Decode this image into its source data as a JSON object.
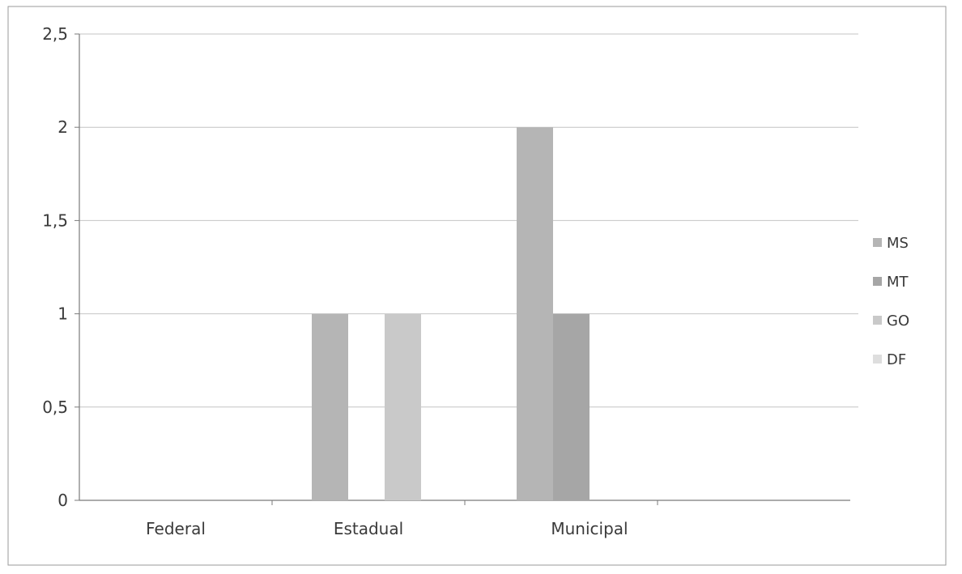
{
  "chart_data": {
    "type": "bar",
    "title": "",
    "xlabel": "",
    "ylabel": "",
    "categories": [
      "Federal",
      "Estadual",
      "Municipal"
    ],
    "yticks": [
      "0",
      "0,5",
      "1",
      "1,5",
      "2",
      "2,5"
    ],
    "ylim": [
      0,
      2.5
    ],
    "grid": true,
    "legend_position": "right",
    "series": [
      {
        "name": "MS",
        "values": [
          0,
          1,
          2
        ],
        "color": "#b5b5b5"
      },
      {
        "name": "MT",
        "values": [
          0,
          0,
          1
        ],
        "color": "#a6a6a6"
      },
      {
        "name": "GO",
        "values": [
          0,
          1,
          0
        ],
        "color": "#c9c9c9"
      },
      {
        "name": "DF",
        "values": [
          0,
          0,
          0
        ],
        "color": "#dedede"
      }
    ]
  }
}
